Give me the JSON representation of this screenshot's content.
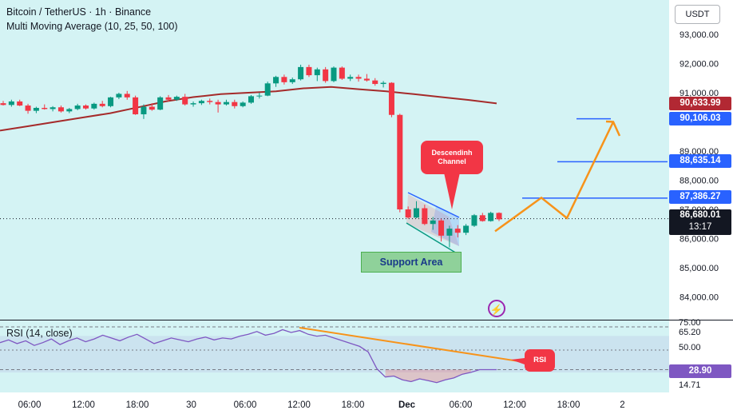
{
  "header": {
    "title": "Bitcoin / TetherUS · 1h · Binance",
    "indicator": "Multi Moving Average (10, 25, 50, 100)"
  },
  "currency_button": "USDT",
  "price_labels": {
    "ma": {
      "value": "90,633.99",
      "color": "#b22833"
    },
    "target1": {
      "value": "90,106.03",
      "color": "#2962ff"
    },
    "target2": {
      "value": "88,635.14",
      "color": "#2962ff"
    },
    "target3": {
      "value": "87,386.27",
      "color": "#2962ff"
    },
    "last": {
      "value": "86,680.01",
      "countdown": "13:17",
      "color": "#131722"
    }
  },
  "rsi_labels": {
    "title": "RSI (14, close)",
    "value": "28.90",
    "ticks": [
      "75.00",
      "65.20",
      "50.00",
      "14.71"
    ]
  },
  "annotations": {
    "descending_channel": "Descendinh Channel",
    "support_area": "Support Area",
    "rsi_badge": "RSI"
  },
  "chart_data": {
    "type": "candlestick",
    "price_axis": {
      "ticks": [
        "93,000.00",
        "92,000.00",
        "91,000.00",
        "89,000.00",
        "88,000.00",
        "87,000.00",
        "86,000.00",
        "85,000.00",
        "84,000.00"
      ],
      "ylim": [
        83500,
        93800
      ]
    },
    "time_axis": {
      "ticks": [
        "06:00",
        "12:00",
        "18:00",
        "30",
        "06:00",
        "12:00",
        "18:00",
        "Dec",
        "06:00",
        "12:00",
        "18:00",
        "2"
      ]
    },
    "candles": [
      [
        90640,
        90720,
        90560,
        90580
      ],
      [
        90580,
        90760,
        90520,
        90700
      ],
      [
        90700,
        90760,
        90540,
        90560
      ],
      [
        90560,
        90620,
        90280,
        90380
      ],
      [
        90380,
        90520,
        90300,
        90480
      ],
      [
        90480,
        90600,
        90420,
        90440
      ],
      [
        90440,
        90540,
        90360,
        90500
      ],
      [
        90500,
        90560,
        90320,
        90360
      ],
      [
        90360,
        90480,
        90300,
        90440
      ],
      [
        90440,
        90620,
        90400,
        90560
      ],
      [
        90560,
        90600,
        90420,
        90460
      ],
      [
        90460,
        90660,
        90420,
        90620
      ],
      [
        90620,
        90720,
        90500,
        90540
      ],
      [
        90540,
        90860,
        90500,
        90840
      ],
      [
        90840,
        91000,
        90780,
        90960
      ],
      [
        90960,
        91060,
        90760,
        90840
      ],
      [
        90840,
        90900,
        90240,
        90260
      ],
      [
        90260,
        90600,
        90100,
        90520
      ],
      [
        90520,
        90640,
        90380,
        90420
      ],
      [
        90420,
        90880,
        90400,
        90840
      ],
      [
        90840,
        90920,
        90700,
        90760
      ],
      [
        90760,
        90900,
        90720,
        90860
      ],
      [
        90860,
        90960,
        90560,
        90600
      ],
      [
        90600,
        90700,
        90520,
        90640
      ],
      [
        90640,
        90760,
        90580,
        90720
      ],
      [
        90720,
        90800,
        90600,
        90680
      ],
      [
        90680,
        90760,
        90320,
        90600
      ],
      [
        90600,
        90760,
        90560,
        90680
      ],
      [
        90680,
        90760,
        90460,
        90540
      ],
      [
        90540,
        90700,
        90500,
        90660
      ],
      [
        90660,
        90920,
        90620,
        90880
      ],
      [
        90880,
        91000,
        90800,
        90900
      ],
      [
        90900,
        91380,
        90880,
        91320
      ],
      [
        91320,
        91580,
        91200,
        91540
      ],
      [
        91540,
        91620,
        91280,
        91360
      ],
      [
        91360,
        91520,
        91300,
        91460
      ],
      [
        91460,
        91960,
        91420,
        91880
      ],
      [
        91880,
        91960,
        91540,
        91600
      ],
      [
        91600,
        91860,
        91400,
        91800
      ],
      [
        91800,
        91880,
        91340,
        91400
      ],
      [
        91400,
        91900,
        91360,
        91860
      ],
      [
        91860,
        91900,
        91440,
        91480
      ],
      [
        91480,
        91620,
        91400,
        91540
      ],
      [
        91540,
        91620,
        91380,
        91480
      ],
      [
        91480,
        91640,
        91380,
        91420
      ],
      [
        91420,
        91500,
        91240,
        91300
      ],
      [
        91300,
        91400,
        91180,
        91340
      ],
      [
        91340,
        91360,
        90160,
        90240
      ],
      [
        90240,
        90280,
        86900,
        87000
      ],
      [
        87000,
        87100,
        86680,
        86720
      ],
      [
        86720,
        87280,
        86700,
        87040
      ],
      [
        87040,
        87160,
        86460,
        86500
      ],
      [
        86500,
        86740,
        86300,
        86620
      ],
      [
        86620,
        86680,
        85900,
        86100
      ],
      [
        86100,
        86440,
        85700,
        86340
      ],
      [
        86340,
        86460,
        86040,
        86200
      ],
      [
        86200,
        86500,
        86120,
        86440
      ],
      [
        86440,
        86840,
        86400,
        86800
      ],
      [
        86800,
        86880,
        86580,
        86600
      ],
      [
        86600,
        86920,
        86580,
        86880
      ],
      [
        86880,
        86900,
        86600,
        86660
      ]
    ],
    "moving_average": [
      89700,
      89850,
      90000,
      90150,
      90300,
      90500,
      90700,
      90850,
      90950,
      91000,
      91050,
      91150,
      91200,
      91120,
      91050,
      90950,
      90850,
      90750,
      90634
    ],
    "trendlines": [
      {
        "name": "",
        "value": 90106.03
      },
      {
        "name": "",
        "value": 88635.14
      },
      {
        "name": "",
        "value": 87386.27
      }
    ],
    "projection": [
      86250,
      86700,
      87400,
      86700,
      90000
    ],
    "rsi": {
      "values": [
        58,
        61,
        57,
        60,
        55,
        58,
        62,
        56,
        60,
        63,
        59,
        62,
        66,
        63,
        60,
        64,
        67,
        62,
        57,
        60,
        63,
        61,
        59,
        62,
        64,
        61,
        63,
        62,
        65,
        67,
        70,
        66,
        68,
        72,
        69,
        71,
        67,
        65,
        66,
        63,
        60,
        57,
        54,
        48,
        30,
        21,
        22,
        18,
        16,
        19,
        17,
        15,
        18,
        20,
        24,
        26,
        28.9,
        28.9,
        28.9
      ],
      "ylim": [
        5,
        80
      ],
      "levels": [
        65.2,
        50,
        28.9
      ]
    }
  }
}
